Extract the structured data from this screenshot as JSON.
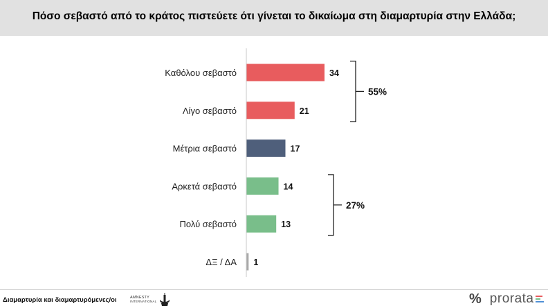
{
  "header": {
    "title": "Πόσο σεβαστό από το κράτος πιστεύετε ότι γίνεται το δικαίωμα στη διαμαρτυρία στην Ελλάδα;"
  },
  "chart_data": {
    "type": "bar",
    "orientation": "horizontal",
    "categories": [
      "Καθόλου σεβαστό",
      "Λίγο σεβαστό",
      "Μέτρια σεβαστό",
      "Αρκετά σεβαστό",
      "Πολύ σεβαστό",
      "ΔΞ / ΔΑ"
    ],
    "values": [
      34,
      21,
      17,
      14,
      13,
      1
    ],
    "colors": [
      "#e85c5e",
      "#e85c5e",
      "#4f5f7b",
      "#79be8a",
      "#79be8a",
      "#a9a9a9"
    ],
    "groups": [
      {
        "label": "55%",
        "from": 0,
        "to": 1
      },
      {
        "label": "27%",
        "from": 3,
        "to": 4
      }
    ],
    "xlim": [
      0,
      35
    ]
  },
  "footer": {
    "text": "Διαμαρτυρία και διαμαρτυρόμενες/οι",
    "partner_logo_line1": "Amnesty",
    "partner_logo_line2": "International",
    "brand_symbol": "%",
    "brand_name": "prorata",
    "brand_bar_colors": [
      "#e85c5e",
      "#79be8a",
      "#4f8fd6"
    ]
  }
}
